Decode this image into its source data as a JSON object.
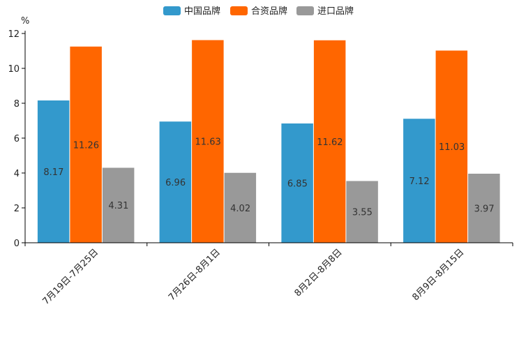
{
  "chart_data": {
    "type": "bar",
    "title": "",
    "ylabel": "%",
    "xlabel": "",
    "ylim": [
      0,
      12
    ],
    "yticks": [
      0,
      2,
      4,
      6,
      8,
      10,
      12
    ],
    "grid": false,
    "legend_position": "top-center",
    "categories": [
      "7月19日-7月25日",
      "7月26日-8月1日",
      "8月2日-8月8日",
      "8月9日-8月15日"
    ],
    "series": [
      {
        "name": "中国品牌",
        "color": "#3399CC",
        "values": [
          8.17,
          6.96,
          6.85,
          7.12
        ]
      },
      {
        "name": "合资品牌",
        "color": "#FF6600",
        "values": [
          11.26,
          11.63,
          11.62,
          11.03
        ]
      },
      {
        "name": "进口品牌",
        "color": "#999999",
        "values": [
          4.31,
          4.02,
          3.55,
          3.97
        ]
      }
    ]
  }
}
